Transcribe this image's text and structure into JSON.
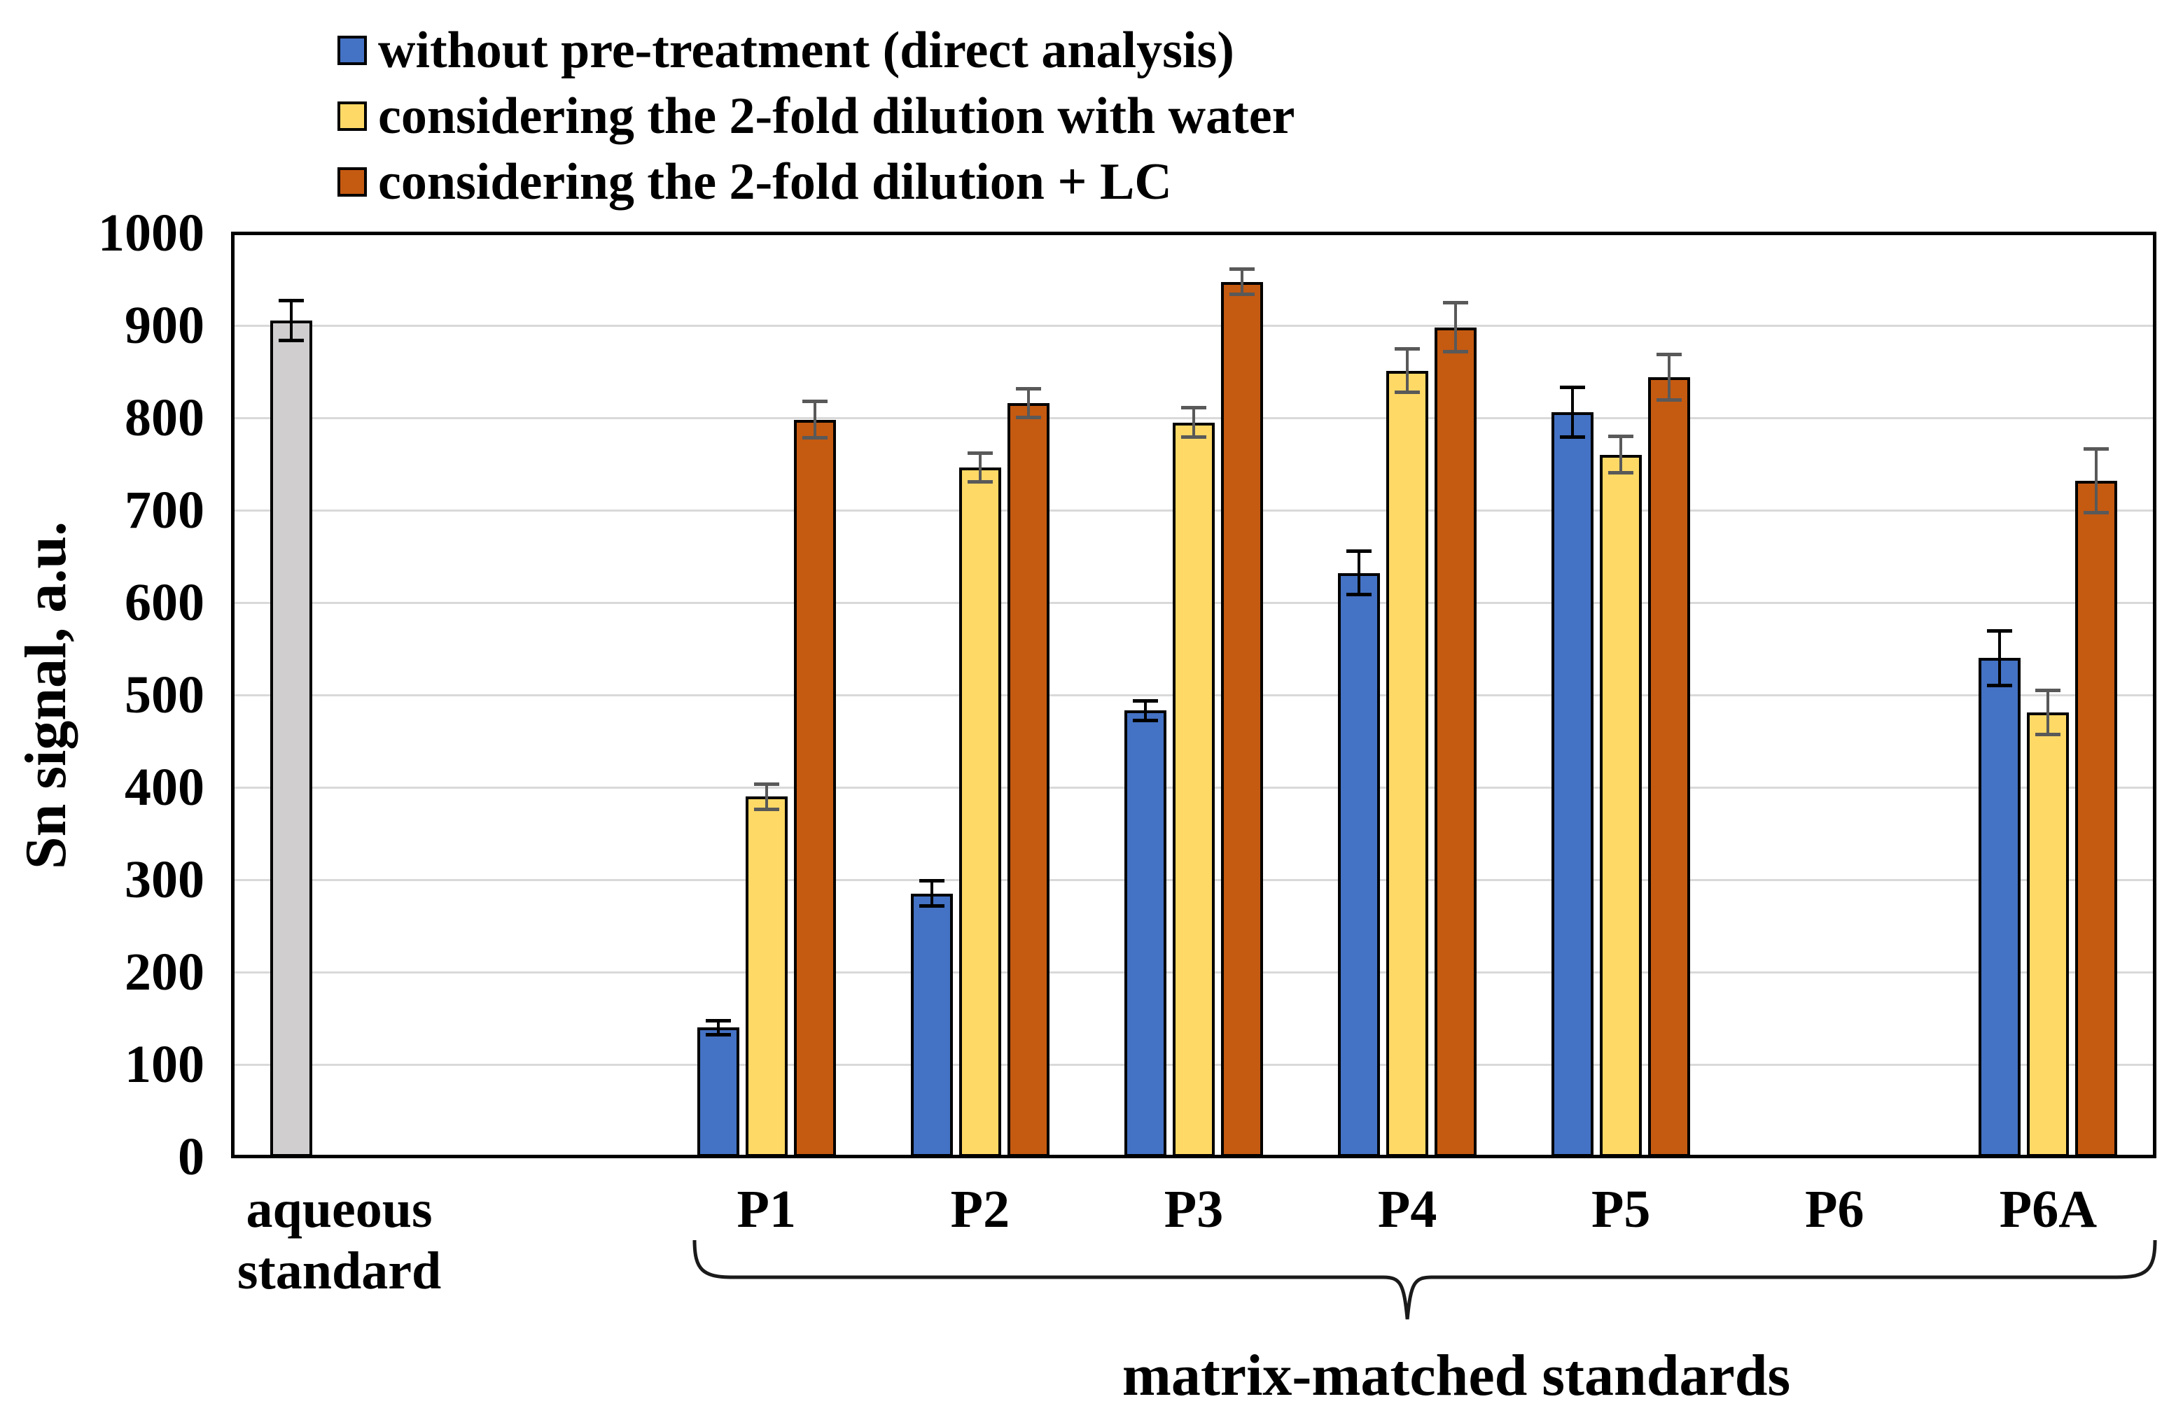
{
  "accent_colors": {
    "blue": "#4472C4",
    "yellow": "#FFD966",
    "orange": "#C55A11",
    "gray": "#D0CECE",
    "gridline": "#D9D9D9",
    "axis_black": "#000000",
    "error_dark": "#000000",
    "error_gray": "#595959"
  },
  "legend": {
    "items": [
      {
        "label": "without pre-treatment (direct analysis)",
        "color": "#4472C4"
      },
      {
        "label": "considering the 2-fold dilution with water",
        "color": "#FFD966"
      },
      {
        "label": "considering the 2-fold dilution + LC",
        "color": "#C55A11"
      }
    ]
  },
  "chart_data": {
    "type": "bar",
    "title": "",
    "xlabel": "",
    "ylabel": "Sn signal, a.u.",
    "ylim": [
      0,
      1000
    ],
    "yticks": [
      0,
      100,
      200,
      300,
      400,
      500,
      600,
      700,
      800,
      900,
      1000
    ],
    "grid": true,
    "legend_position": "top-left",
    "categories": [
      "aqueous standard",
      "P1",
      "P2",
      "P3",
      "P4",
      "P5",
      "P6",
      "P6A"
    ],
    "brace_label": "matrix-matched standards",
    "brace_span_categories": [
      "P1",
      "P6A"
    ],
    "series": [
      {
        "name": "aqueous standard",
        "color": "#D0CECE",
        "error_color": "#000000",
        "in_legend": false,
        "values": [
          905,
          null,
          null,
          null,
          null,
          null,
          null,
          null
        ],
        "errors": [
          22,
          null,
          null,
          null,
          null,
          null,
          null,
          null
        ]
      },
      {
        "name": "without pre-treatment (direct analysis)",
        "color": "#4472C4",
        "error_color": "#000000",
        "in_legend": true,
        "values": [
          null,
          140,
          285,
          483,
          632,
          806,
          null,
          540
        ],
        "errors": [
          null,
          8,
          14,
          11,
          24,
          27,
          null,
          30
        ]
      },
      {
        "name": "considering the 2-fold dilution with water",
        "color": "#FFD966",
        "error_color": "#595959",
        "in_legend": true,
        "values": [
          null,
          390,
          746,
          795,
          851,
          760,
          null,
          481
        ],
        "errors": [
          null,
          14,
          16,
          16,
          24,
          20,
          null,
          24
        ]
      },
      {
        "name": "considering the 2-fold dilution + LC",
        "color": "#C55A11",
        "error_color": "#595959",
        "in_legend": true,
        "values": [
          null,
          798,
          816,
          947,
          898,
          844,
          null,
          732
        ],
        "errors": [
          null,
          20,
          16,
          14,
          27,
          25,
          null,
          35
        ]
      }
    ]
  }
}
